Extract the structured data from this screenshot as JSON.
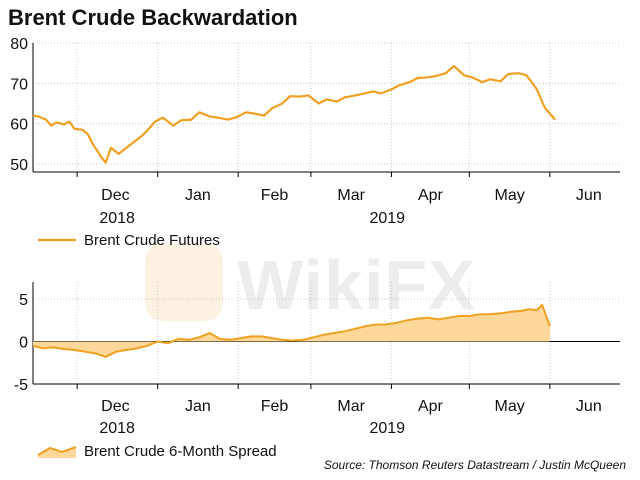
{
  "title": "Brent Crude Backwardation",
  "source": "Source: Thomson Reuters Datastream / Justin McQueen",
  "watermark": "WikiFX",
  "colors": {
    "line": "#f0a020",
    "area_fill": "#fdd89a",
    "axis": "#000000",
    "grid": "#c8c8c8"
  },
  "chart_data": [
    {
      "type": "line",
      "title": "",
      "legend": "bottom-left",
      "grid": true,
      "ylim": [
        48,
        80
      ],
      "yticks": [
        50,
        60,
        70,
        80
      ],
      "xlim": [
        "2018-11-14",
        "2019-06-28"
      ],
      "month_ticks": [
        {
          "label": "Dec",
          "date": "2018-12-01"
        },
        {
          "label": "Jan",
          "date": "2019-01-01"
        },
        {
          "label": "Feb",
          "date": "2019-02-01"
        },
        {
          "label": "Mar",
          "date": "2019-03-01"
        },
        {
          "label": "Apr",
          "date": "2019-04-01"
        },
        {
          "label": "May",
          "date": "2019-05-01"
        },
        {
          "label": "Jun",
          "date": "2019-06-01"
        }
      ],
      "year_labels": [
        {
          "label": "2018",
          "date": "2018-12-01"
        },
        {
          "label": "2019",
          "date": "2019-03-15"
        }
      ],
      "series": [
        {
          "name": "Brent Crude Futures",
          "x": [
            "2018-11-14",
            "2018-11-16",
            "2018-11-19",
            "2018-11-21",
            "2018-11-23",
            "2018-11-26",
            "2018-11-28",
            "2018-11-30",
            "2018-12-03",
            "2018-12-05",
            "2018-12-07",
            "2018-12-10",
            "2018-12-12",
            "2018-12-14",
            "2018-12-17",
            "2018-12-19",
            "2018-12-21",
            "2018-12-24",
            "2018-12-26",
            "2018-12-28",
            "2018-12-31",
            "2019-01-03",
            "2019-01-07",
            "2019-01-10",
            "2019-01-14",
            "2019-01-17",
            "2019-01-21",
            "2019-01-24",
            "2019-01-28",
            "2019-01-31",
            "2019-02-04",
            "2019-02-07",
            "2019-02-11",
            "2019-02-14",
            "2019-02-18",
            "2019-02-21",
            "2019-02-25",
            "2019-02-28",
            "2019-03-04",
            "2019-03-07",
            "2019-03-11",
            "2019-03-14",
            "2019-03-18",
            "2019-03-21",
            "2019-03-25",
            "2019-03-28",
            "2019-04-01",
            "2019-04-04",
            "2019-04-08",
            "2019-04-11",
            "2019-04-15",
            "2019-04-18",
            "2019-04-22",
            "2019-04-25",
            "2019-04-29",
            "2019-05-02",
            "2019-05-06",
            "2019-05-09",
            "2019-05-13",
            "2019-05-16",
            "2019-05-20",
            "2019-05-23",
            "2019-05-27",
            "2019-05-30",
            "2019-06-03"
          ],
          "y": [
            62,
            61.8,
            61,
            59.5,
            60.3,
            59.8,
            60.5,
            58.7,
            58.5,
            57.5,
            55,
            52,
            50.3,
            54,
            52.5,
            53.5,
            54.5,
            56,
            57,
            58.3,
            60.5,
            61.5,
            59.5,
            60.8,
            61,
            62.8,
            61.8,
            61.5,
            61,
            61.5,
            62.8,
            62.5,
            62,
            63.8,
            65,
            66.8,
            66.7,
            67,
            65,
            66,
            65.5,
            66.5,
            67,
            67.4,
            68,
            67.5,
            68.5,
            69.5,
            70.3,
            71.3,
            71.5,
            71.8,
            72.5,
            74.3,
            72,
            71.5,
            70.3,
            71,
            70.5,
            72.3,
            72.5,
            72,
            68.5,
            64,
            61
          ]
        }
      ]
    },
    {
      "type": "area",
      "title": "",
      "legend": "bottom-left",
      "grid": true,
      "ylim": [
        -5,
        7
      ],
      "yticks": [
        -5,
        0,
        5
      ],
      "xlim": [
        "2018-11-14",
        "2019-06-28"
      ],
      "month_ticks": [
        {
          "label": "Dec",
          "date": "2018-12-01"
        },
        {
          "label": "Jan",
          "date": "2019-01-01"
        },
        {
          "label": "Feb",
          "date": "2019-02-01"
        },
        {
          "label": "Mar",
          "date": "2019-03-01"
        },
        {
          "label": "Apr",
          "date": "2019-04-01"
        },
        {
          "label": "May",
          "date": "2019-05-01"
        },
        {
          "label": "Jun",
          "date": "2019-06-01"
        }
      ],
      "year_labels": [
        {
          "label": "2018",
          "date": "2018-12-01"
        },
        {
          "label": "2019",
          "date": "2019-03-15"
        }
      ],
      "series": [
        {
          "name": "Brent Crude 6-Month Spread",
          "x": [
            "2018-11-14",
            "2018-11-18",
            "2018-11-22",
            "2018-11-26",
            "2018-11-30",
            "2018-12-04",
            "2018-12-08",
            "2018-12-12",
            "2018-12-16",
            "2018-12-20",
            "2018-12-24",
            "2018-12-28",
            "2019-01-01",
            "2019-01-05",
            "2019-01-09",
            "2019-01-13",
            "2019-01-17",
            "2019-01-21",
            "2019-01-25",
            "2019-01-29",
            "2019-02-02",
            "2019-02-06",
            "2019-02-10",
            "2019-02-14",
            "2019-02-18",
            "2019-02-22",
            "2019-02-26",
            "2019-03-02",
            "2019-03-06",
            "2019-03-10",
            "2019-03-14",
            "2019-03-18",
            "2019-03-22",
            "2019-03-26",
            "2019-03-30",
            "2019-04-03",
            "2019-04-07",
            "2019-04-11",
            "2019-04-15",
            "2019-04-19",
            "2019-04-23",
            "2019-04-27",
            "2019-05-01",
            "2019-05-05",
            "2019-05-09",
            "2019-05-13",
            "2019-05-17",
            "2019-05-21",
            "2019-05-24",
            "2019-05-27",
            "2019-05-29",
            "2019-06-01"
          ],
          "y": [
            -0.5,
            -0.8,
            -0.7,
            -0.9,
            -1.0,
            -1.2,
            -1.4,
            -1.8,
            -1.2,
            -1.0,
            -0.8,
            -0.5,
            0.0,
            -0.2,
            0.3,
            0.2,
            0.5,
            1.0,
            0.3,
            0.2,
            0.4,
            0.6,
            0.6,
            0.4,
            0.2,
            0.1,
            0.2,
            0.5,
            0.8,
            1.0,
            1.2,
            1.5,
            1.8,
            2.0,
            2.0,
            2.2,
            2.5,
            2.7,
            2.8,
            2.6,
            2.8,
            3.0,
            3.0,
            3.2,
            3.2,
            3.3,
            3.5,
            3.6,
            3.8,
            3.7,
            4.3,
            1.8
          ]
        }
      ]
    }
  ]
}
